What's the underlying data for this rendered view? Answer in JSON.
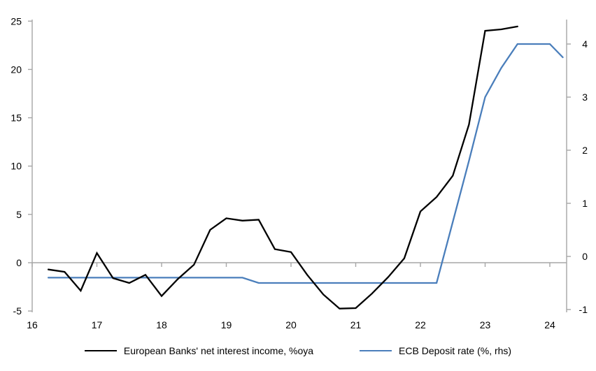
{
  "chart_data": {
    "type": "line",
    "title": "",
    "x_axis": {
      "tick_years": [
        16,
        17,
        18,
        19,
        20,
        21,
        22,
        23,
        24
      ],
      "tick_labels": [
        "16",
        "17",
        "18",
        "19",
        "20",
        "21",
        "22",
        "23",
        "24"
      ],
      "range": [
        16,
        24.3
      ]
    },
    "y_axis_left": {
      "ticks": [
        -5,
        0,
        5,
        10,
        15,
        20,
        25
      ],
      "tick_labels": [
        "-5",
        "0",
        "5",
        "10",
        "15",
        "20",
        "25"
      ],
      "range": [
        -5,
        25
      ]
    },
    "y_axis_right": {
      "ticks": [
        -1,
        0,
        1,
        2,
        3,
        4
      ],
      "tick_labels": [
        "-1",
        "0",
        "1",
        "2",
        "3",
        "4"
      ],
      "range": [
        -1,
        4.5
      ]
    },
    "grid": "zero-line-only",
    "legend_position": "bottom",
    "series": [
      {
        "name": "European Banks' net interest income, %oya",
        "color": "#000000",
        "axis": "left",
        "x": [
          16.25,
          16.5,
          16.75,
          17.0,
          17.25,
          17.5,
          17.75,
          18.0,
          18.25,
          18.5,
          18.75,
          19.0,
          19.25,
          19.5,
          19.75,
          20.0,
          20.25,
          20.5,
          20.75,
          21.0,
          21.25,
          21.5,
          21.75,
          22.0,
          22.25,
          22.5,
          22.75,
          23.0,
          23.25,
          23.5
        ],
        "values": [
          -0.7,
          -0.95,
          -2.9,
          1.0,
          -1.6,
          -2.1,
          -1.25,
          -3.45,
          -1.7,
          -0.2,
          3.4,
          4.6,
          4.35,
          4.45,
          1.4,
          1.1,
          -1.25,
          -3.3,
          -4.75,
          -4.7,
          -3.2,
          -1.5,
          0.45,
          5.3,
          6.8,
          9.0,
          14.3,
          24.0,
          24.15,
          24.45
        ]
      },
      {
        "name": "ECB Deposit rate (%, rhs)",
        "color": "#4a7ebb",
        "axis": "right",
        "x": [
          16.25,
          16.5,
          16.75,
          17.0,
          17.25,
          17.5,
          17.75,
          18.0,
          18.25,
          18.5,
          18.75,
          19.0,
          19.25,
          19.5,
          19.75,
          20.0,
          20.25,
          20.5,
          20.75,
          21.0,
          21.25,
          21.5,
          21.75,
          22.0,
          22.25,
          22.5,
          22.75,
          23.0,
          23.25,
          23.5,
          23.75,
          24.0,
          24.2
        ],
        "values": [
          -0.4,
          -0.4,
          -0.4,
          -0.4,
          -0.4,
          -0.4,
          -0.4,
          -0.4,
          -0.4,
          -0.4,
          -0.4,
          -0.4,
          -0.4,
          -0.5,
          -0.5,
          -0.5,
          -0.5,
          -0.5,
          -0.5,
          -0.5,
          -0.5,
          -0.5,
          -0.5,
          -0.5,
          -0.5,
          0.65,
          1.8,
          3.0,
          3.55,
          4.0,
          4.0,
          4.0,
          3.75
        ]
      }
    ]
  },
  "colors": {
    "background": "#ffffff",
    "axis": "#a6a6a6",
    "text": "#000000",
    "nii_line": "#000000",
    "deposit_rate_line": "#4a7ebb"
  }
}
